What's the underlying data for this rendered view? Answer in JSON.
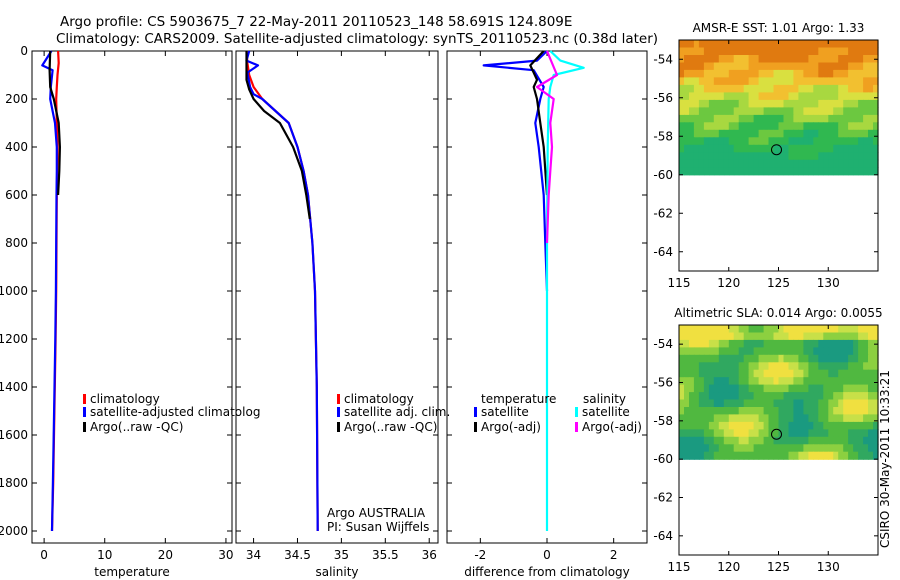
{
  "header": {
    "line1": "Argo profile: CS 5903675_7 22-May-2011 20110523_148 58.691S 124.809E",
    "line2": "Climatology: CARS2009. Satellite-adjusted climatology: synTS_20110523.nc (0.38d later)"
  },
  "credits": {
    "argo": "Argo AUSTRALIA",
    "pi": "PI: Susan Wijffels",
    "csiro": "CSIRO 30-May-2011 10:33:21"
  },
  "colors": {
    "climatology": "#ff0000",
    "satellite": "#0000ff",
    "argo": "#000000",
    "sal_satellite": "#00ffff",
    "sal_argo": "#ff00ff"
  },
  "chart_data": [
    {
      "type": "line",
      "title": "",
      "xlabel": "temperature",
      "ylabel": "",
      "xlim": [
        -2,
        31
      ],
      "ylim": [
        2050,
        0
      ],
      "xticks": [
        0,
        10,
        20,
        30
      ],
      "yticks": [
        0,
        200,
        400,
        600,
        800,
        1000,
        1200,
        1400,
        1600,
        1800,
        2000
      ],
      "legend": [
        "climatology",
        "satellite-adjusted climatolog",
        "Argo(..raw -QC)"
      ],
      "series": [
        {
          "name": "climatology",
          "color": "#ff0000",
          "x": [
            2.3,
            2.4,
            2.2,
            2.1,
            2.0,
            2.1,
            2.2,
            2.15,
            2.1,
            2.05,
            2.0,
            1.9,
            1.7,
            1.5,
            1.3
          ],
          "y": [
            0,
            50,
            100,
            150,
            200,
            300,
            400,
            500,
            600,
            800,
            1000,
            1200,
            1500,
            1800,
            2000
          ]
        },
        {
          "name": "satellite-adjusted climatology",
          "color": "#0000ff",
          "x": [
            1.2,
            -0.3,
            1.4,
            1.1,
            1.0,
            1.8,
            2.1,
            2.1,
            2.05,
            2.0,
            1.95,
            1.85,
            1.65,
            1.45,
            1.3
          ],
          "y": [
            0,
            60,
            80,
            150,
            200,
            300,
            400,
            500,
            600,
            800,
            1000,
            1200,
            1500,
            1800,
            2000
          ]
        },
        {
          "name": "Argo",
          "color": "#000000",
          "x": [
            1.0,
            0.9,
            1.0,
            1.6,
            2.4,
            2.6,
            2.5,
            2.3
          ],
          "y": [
            0,
            80,
            150,
            200,
            300,
            400,
            500,
            600
          ]
        }
      ]
    },
    {
      "type": "line",
      "xlabel": "salinity",
      "xlim": [
        33.8,
        36.1
      ],
      "ylim": [
        2050,
        0
      ],
      "xticks": [
        34,
        34.5,
        35,
        35.5,
        36
      ],
      "legend": [
        "climatology",
        "satellite adj. clim.",
        "Argo(..raw -QC)"
      ],
      "series": [
        {
          "name": "climatology",
          "color": "#ff0000",
          "x": [
            33.92,
            33.93,
            33.95,
            34.0,
            34.1,
            34.25,
            34.4,
            34.5,
            34.57,
            34.62,
            34.67,
            34.7,
            34.72,
            34.73
          ],
          "y": [
            0,
            50,
            100,
            150,
            200,
            250,
            300,
            400,
            500,
            600,
            800,
            1000,
            1400,
            2000
          ]
        },
        {
          "name": "satellite adj. clim.",
          "color": "#0000ff",
          "x": [
            33.95,
            33.92,
            34.05,
            33.93,
            33.96,
            34.0,
            34.1,
            34.25,
            34.4,
            34.5,
            34.57,
            34.62,
            34.67,
            34.7,
            34.72,
            34.73
          ],
          "y": [
            0,
            40,
            60,
            90,
            150,
            180,
            200,
            250,
            300,
            400,
            500,
            600,
            800,
            1000,
            1400,
            2000
          ]
        },
        {
          "name": "Argo",
          "color": "#000000",
          "x": [
            33.92,
            33.92,
            33.95,
            34.0,
            34.12,
            34.3,
            34.45,
            34.55,
            34.6,
            34.64
          ],
          "y": [
            0,
            120,
            160,
            200,
            250,
            300,
            400,
            500,
            600,
            700
          ]
        }
      ]
    },
    {
      "type": "line",
      "xlabel": "difference from climatology",
      "xlim": [
        -3,
        3
      ],
      "ylim": [
        2050,
        0
      ],
      "xticks": [
        -2,
        0,
        2
      ],
      "legend": {
        "temperature_title": "temperature",
        "salinity_title": "salinity",
        "entries": [
          "satellite",
          "Argo(-adj)",
          "satellite",
          "Argo(-adj)"
        ]
      },
      "series": [
        {
          "name": "temperature satellite",
          "color": "#0000ff",
          "x": [
            0,
            -0.3,
            -1.9,
            -0.4,
            -0.1,
            -0.2,
            -0.35,
            -0.25,
            -0.1,
            -0.05,
            0.0
          ],
          "y": [
            0,
            40,
            60,
            80,
            150,
            200,
            300,
            400,
            600,
            800,
            1000
          ]
        },
        {
          "name": "temperature Argo",
          "color": "#000000",
          "x": [
            -0.1,
            -0.5,
            -0.4,
            -0.3,
            -0.4,
            -0.3,
            -0.2,
            -0.1,
            0.0
          ],
          "y": [
            0,
            60,
            90,
            120,
            150,
            200,
            300,
            400,
            600
          ]
        },
        {
          "name": "salinity satellite",
          "color": "#00ffff",
          "x": [
            0.1,
            0.4,
            1.1,
            0.2,
            0.1,
            0.05,
            0.02,
            0.0,
            0.0,
            0.0
          ],
          "y": [
            0,
            40,
            70,
            100,
            150,
            200,
            400,
            800,
            1400,
            2000
          ]
        },
        {
          "name": "salinity Argo",
          "color": "#ff00ff",
          "x": [
            0.0,
            0.3,
            -0.3,
            0.2,
            0.1,
            0.15,
            0.1,
            0.05,
            0.0
          ],
          "y": [
            0,
            100,
            150,
            200,
            300,
            400,
            500,
            600,
            800
          ]
        }
      ]
    },
    {
      "type": "heatmap",
      "title": "AMSR-E SST: 1.01  Argo: 1.33",
      "xlim": [
        115,
        135
      ],
      "ylim": [
        -65,
        -53
      ],
      "xticks": [
        115,
        120,
        125,
        130
      ],
      "yticks": [
        -54,
        -56,
        -58,
        -60,
        -62,
        -64
      ],
      "data_extent_lat": [
        -60,
        -53
      ],
      "marker": {
        "lon": 124.8,
        "lat": -58.7
      }
    },
    {
      "type": "heatmap",
      "title": "Altimetric SLA: 0.014  Argo: 0.0055",
      "xlim": [
        115,
        135
      ],
      "ylim": [
        -65,
        -53
      ],
      "xticks": [
        115,
        120,
        125,
        130
      ],
      "yticks": [
        -54,
        -56,
        -58,
        -60,
        -62,
        -64
      ],
      "data_extent_lat": [
        -60,
        -53
      ],
      "marker": {
        "lon": 124.8,
        "lat": -58.7
      }
    }
  ]
}
